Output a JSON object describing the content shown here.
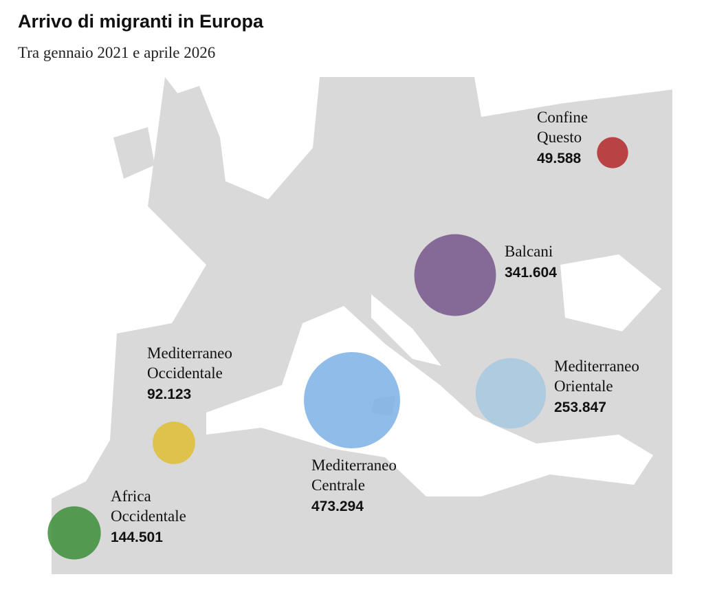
{
  "title": "Arrivo di migranti in Europa",
  "subtitle": "Tra gennaio 2021 e aprile 2026",
  "routes": [
    {
      "name": [
        "Confine",
        "Questo"
      ],
      "value": 49588,
      "value_label": "49.588",
      "color": "#b0282a"
    },
    {
      "name": [
        "Balcani"
      ],
      "value": 341604,
      "value_label": "341.604",
      "color": "#75568b"
    },
    {
      "name": [
        "Mediterraneo",
        "Orientale"
      ],
      "value": 253847,
      "value_label": "253.847",
      "color": "#a7c8e1"
    },
    {
      "name": [
        "Mediterraneo",
        "Centrale"
      ],
      "value": 473294,
      "value_label": "473.294",
      "color": "#7db0e6"
    },
    {
      "name": [
        "Mediterraneo",
        "Occidentale"
      ],
      "value": 92123,
      "value_label": "92.123",
      "color": "#dfbd33"
    },
    {
      "name": [
        "Africa",
        "Occidentale"
      ],
      "value": 144501,
      "value_label": "144.501",
      "color": "#3b8d37"
    }
  ]
}
